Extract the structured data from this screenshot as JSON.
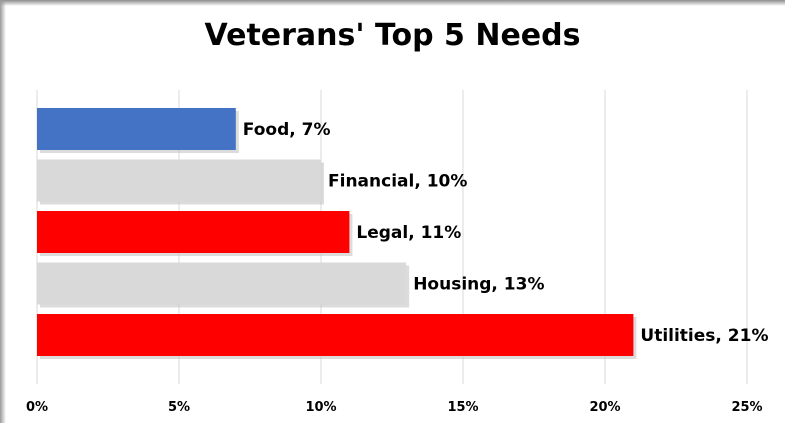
{
  "chart_data": {
    "type": "bar",
    "orientation": "horizontal",
    "title": "Veterans' Top 5 Needs",
    "xlabel": "",
    "ylabel": "",
    "xlim": [
      0,
      25
    ],
    "x_ticks": [
      "0%",
      "5%",
      "10%",
      "15%",
      "20%",
      "25%"
    ],
    "grid": "vertical",
    "legend": "none",
    "bars": [
      {
        "category": "Food",
        "value": 7,
        "label": "Food, 7%",
        "color": "#4472c4"
      },
      {
        "category": "Financial",
        "value": 10,
        "label": "Financial, 10%",
        "color": "#d9d9d9"
      },
      {
        "category": "Legal",
        "value": 11,
        "label": "Legal, 11%",
        "color": "#ff0000"
      },
      {
        "category": "Housing",
        "value": 13,
        "label": "Housing, 13%",
        "color": "#d9d9d9"
      },
      {
        "category": "Utilities",
        "value": 21,
        "label": "Utilities, 21%",
        "color": "#ff0000"
      }
    ]
  }
}
